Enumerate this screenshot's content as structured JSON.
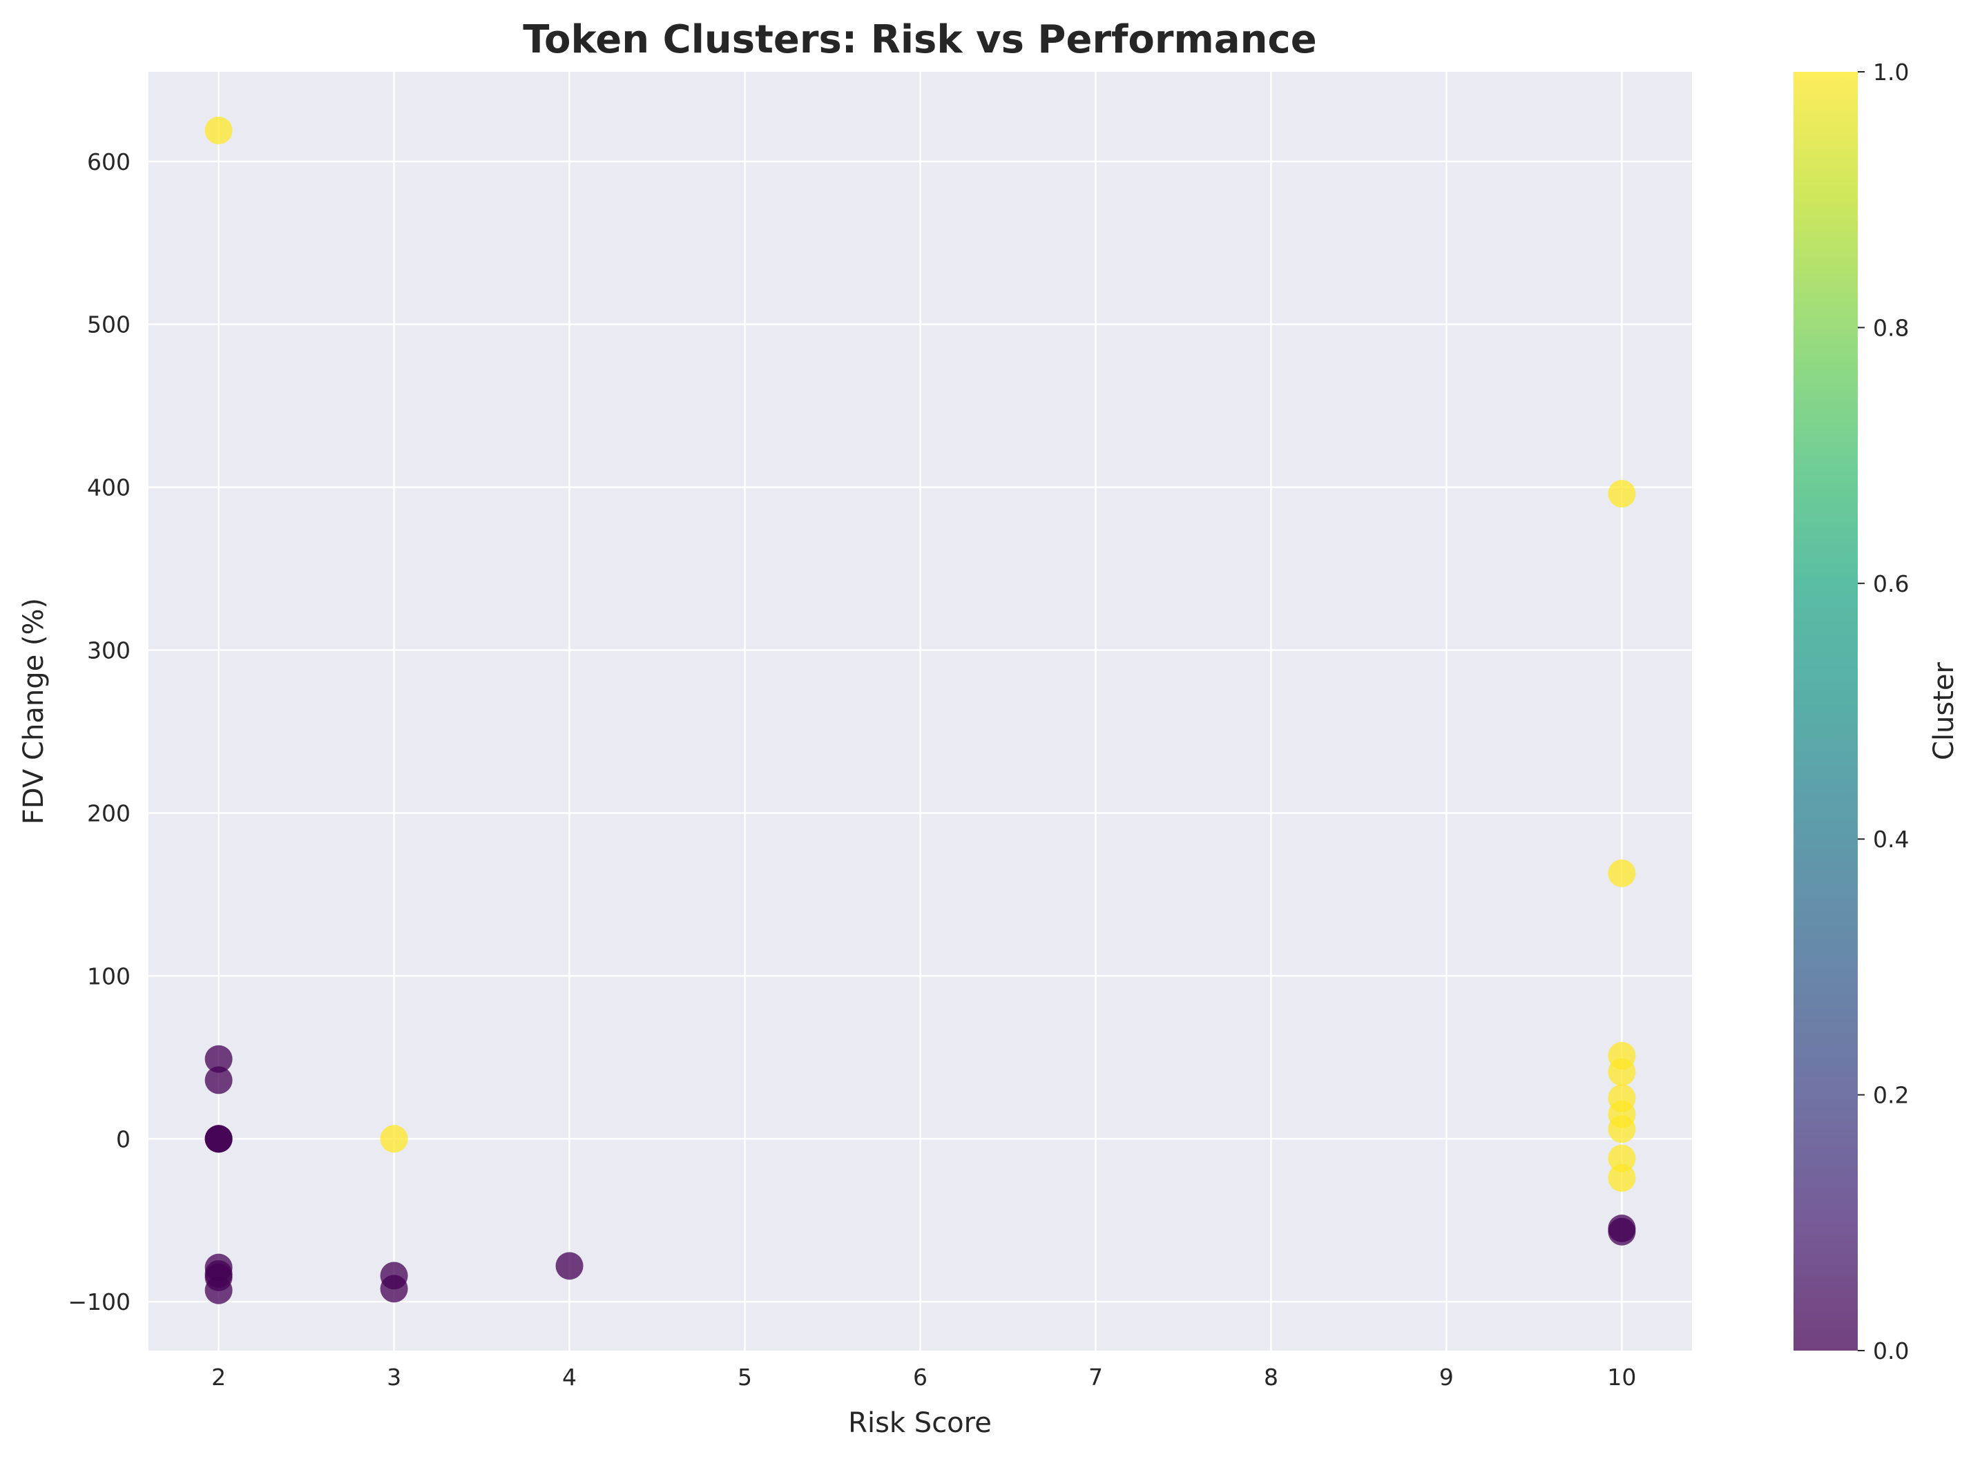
{
  "chart_data": {
    "type": "scatter",
    "title": "Token Clusters: Risk vs Performance",
    "xlabel": "Risk Score",
    "ylabel": "FDV Change (%)",
    "xlim": [
      1.6,
      10.4
    ],
    "ylim": [
      -130,
      655
    ],
    "xticks": [
      2,
      3,
      4,
      5,
      6,
      7,
      8,
      9,
      10
    ],
    "yticks": [
      -100,
      0,
      100,
      200,
      300,
      400,
      500,
      600
    ],
    "grid": true,
    "colorbar": {
      "label": "Cluster",
      "range": [
        0.0,
        1.0
      ],
      "ticks": [
        "0.0",
        "0.2",
        "0.4",
        "0.6",
        "0.8",
        "1.0"
      ],
      "colormap": "viridis"
    },
    "colors": {
      "cluster_0": "#440154",
      "cluster_1": "#fde725",
      "plot_background": "#eaeaf2",
      "grid": "#ffffff"
    },
    "points": [
      {
        "x": 2,
        "y": 619,
        "cluster": 1
      },
      {
        "x": 2,
        "y": 49,
        "cluster": 0
      },
      {
        "x": 2,
        "y": 36,
        "cluster": 0
      },
      {
        "x": 2,
        "y": 0,
        "cluster": 0
      },
      {
        "x": 2,
        "y": 0,
        "cluster": 0
      },
      {
        "x": 2,
        "y": 0,
        "cluster": 0
      },
      {
        "x": 2,
        "y": -79,
        "cluster": 0
      },
      {
        "x": 2,
        "y": -83,
        "cluster": 0
      },
      {
        "x": 2,
        "y": -85,
        "cluster": 0
      },
      {
        "x": 2,
        "y": -93,
        "cluster": 0
      },
      {
        "x": 3,
        "y": 0,
        "cluster": 1
      },
      {
        "x": 3,
        "y": -84,
        "cluster": 0
      },
      {
        "x": 3,
        "y": -92,
        "cluster": 0
      },
      {
        "x": 4,
        "y": -78,
        "cluster": 0
      },
      {
        "x": 10,
        "y": 396,
        "cluster": 1
      },
      {
        "x": 10,
        "y": 163,
        "cluster": 1
      },
      {
        "x": 10,
        "y": 51,
        "cluster": 1
      },
      {
        "x": 10,
        "y": 41,
        "cluster": 1
      },
      {
        "x": 10,
        "y": 25,
        "cluster": 1
      },
      {
        "x": 10,
        "y": 15,
        "cluster": 1
      },
      {
        "x": 10,
        "y": 6,
        "cluster": 1
      },
      {
        "x": 10,
        "y": -12,
        "cluster": 1
      },
      {
        "x": 10,
        "y": -24,
        "cluster": 1
      },
      {
        "x": 10,
        "y": -55,
        "cluster": 0
      },
      {
        "x": 10,
        "y": -57,
        "cluster": 0
      }
    ]
  }
}
